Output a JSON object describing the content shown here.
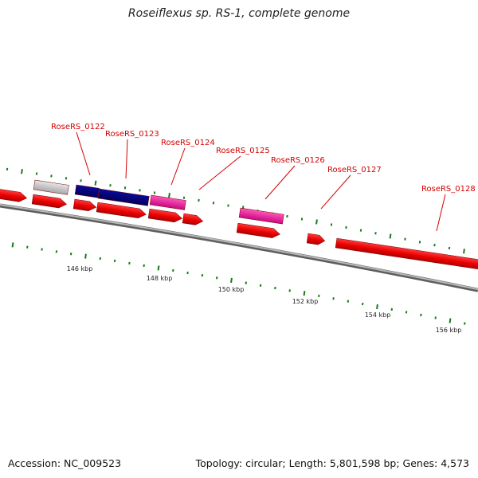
{
  "title": "Roseiflexus sp. RS-1, complete genome",
  "footer": {
    "accession": "Accession: NC_009523",
    "topology": "Topology: circular; Length: 5,801,598 bp; Genes: 4,573"
  },
  "colors": {
    "backbone": "#8a8a8a",
    "cds_red": "#ee0000",
    "navy": "#000080",
    "magenta": "#ee1199",
    "gray_feature": "#c0c0c0",
    "tick_green": "#1a7a1a",
    "label_red": "#d40000"
  },
  "gene_labels": [
    "RoseRS_0122",
    "RoseRS_0123",
    "RoseRS_0124",
    "RoseRS_0125",
    "RoseRS_0126",
    "RoseRS_0127",
    "RoseRS_0128"
  ],
  "scale_labels": [
    "146 kbp",
    "148 kbp",
    "150 kbp",
    "152 kbp",
    "154 kbp",
    "156 kbp"
  ]
}
